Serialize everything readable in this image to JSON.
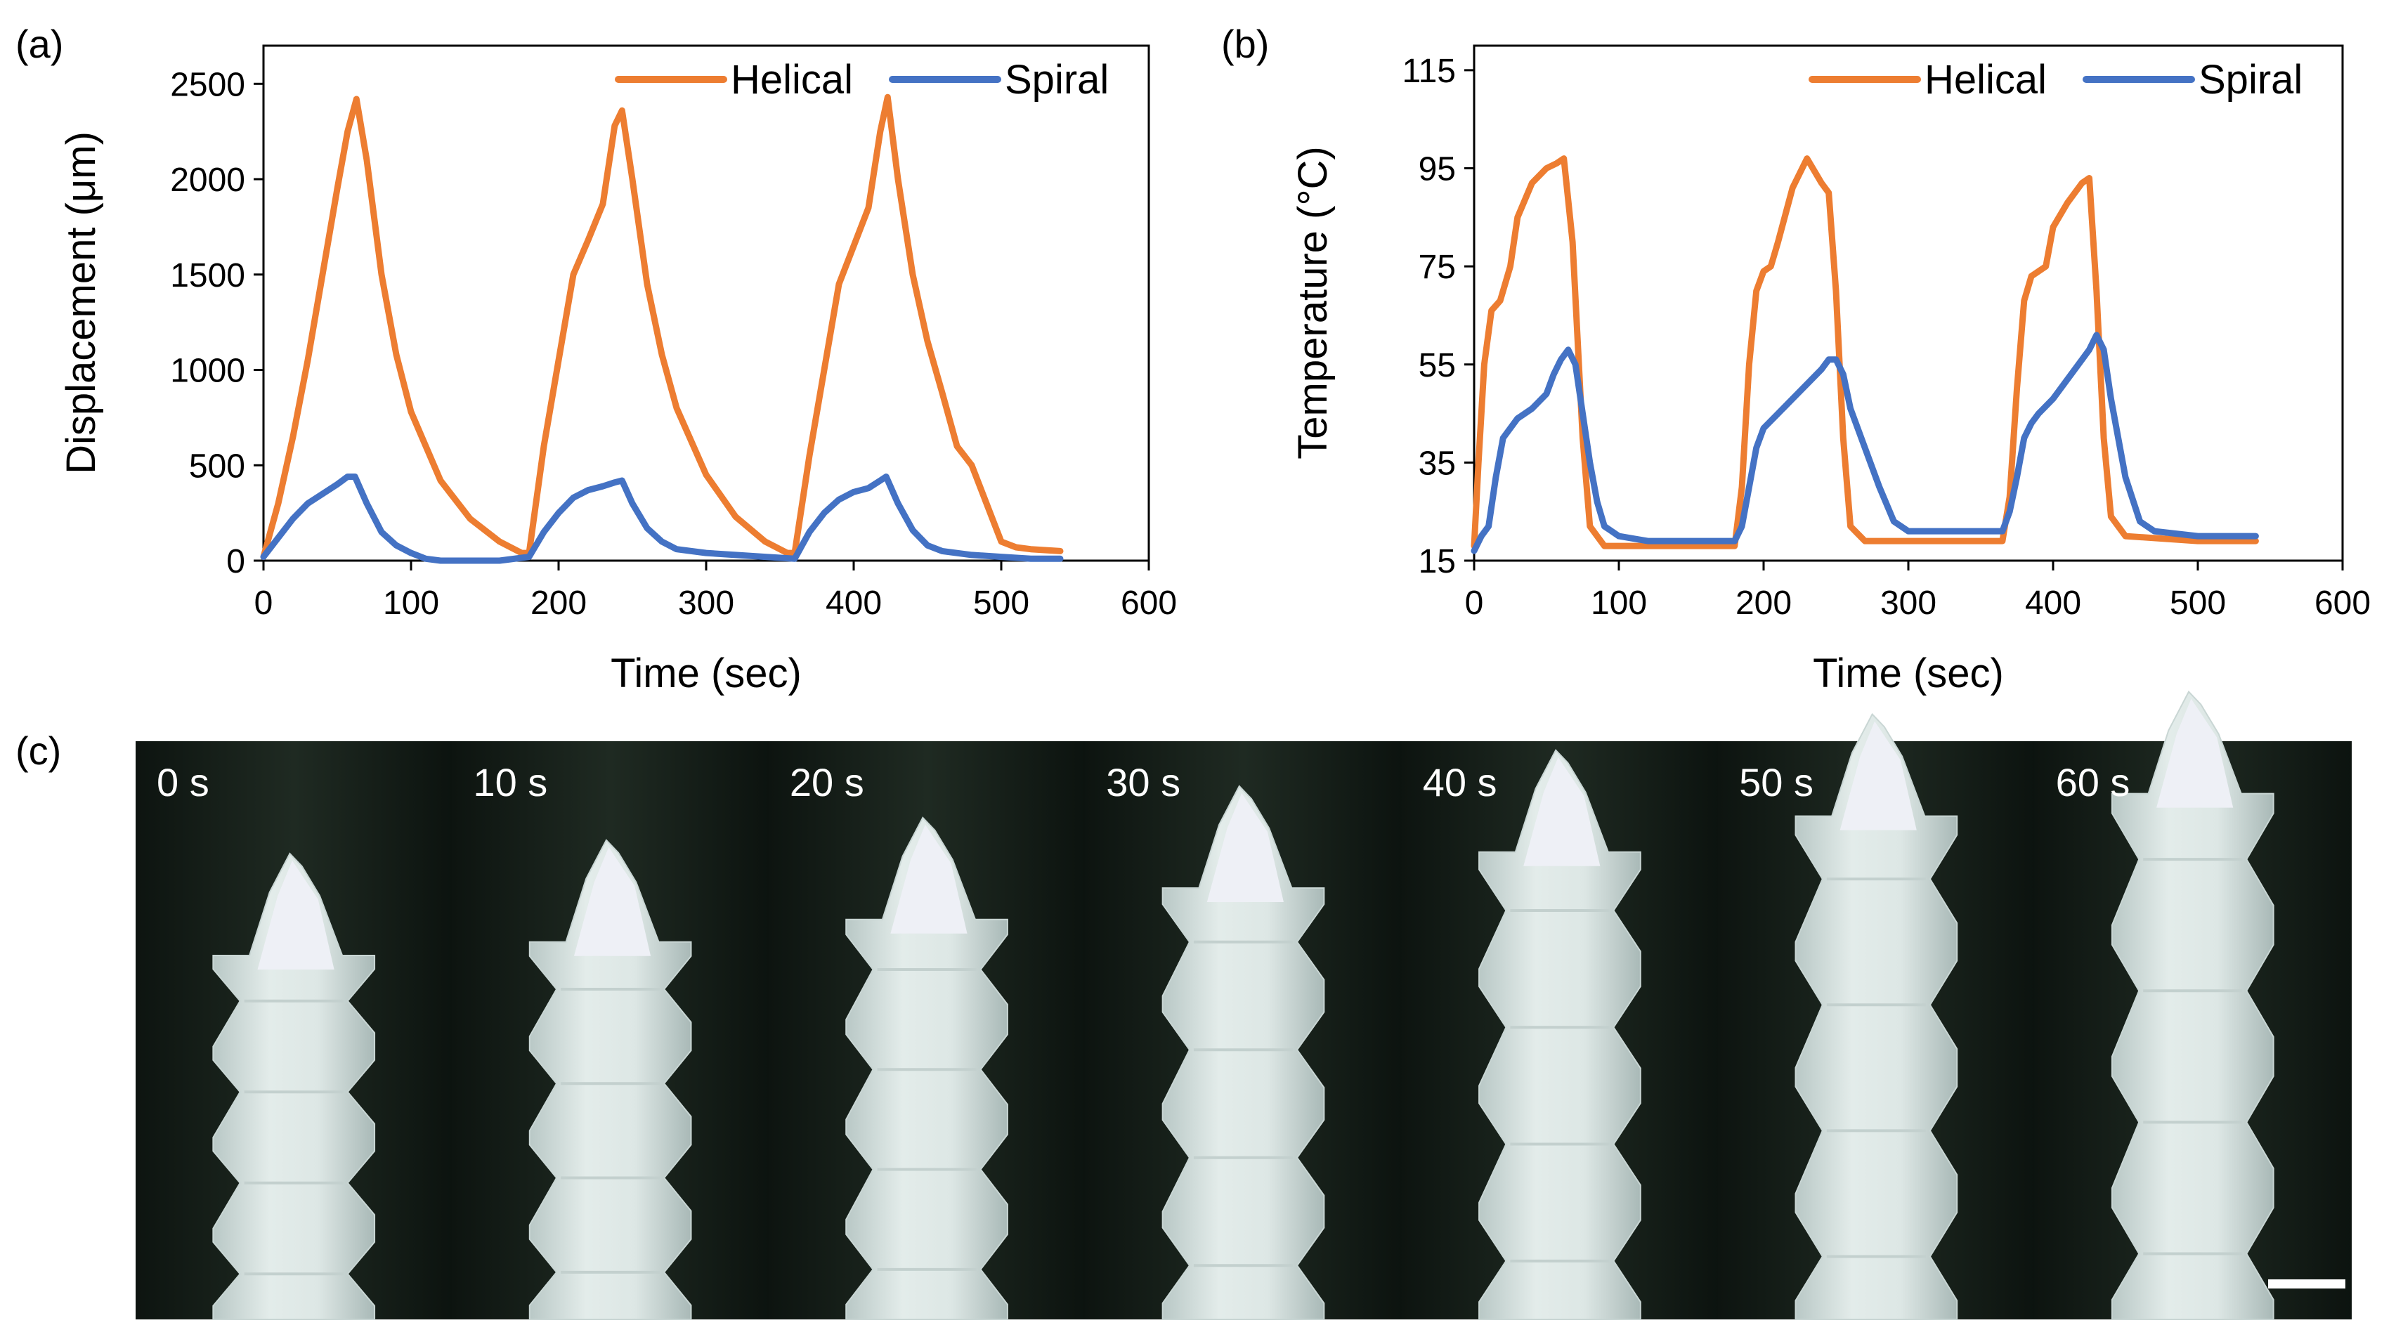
{
  "panels": {
    "a": "(a)",
    "b": "(b)",
    "c": "(c)"
  },
  "chart_data": [
    {
      "type": "line",
      "panel": "(a)",
      "xlabel": "Time (sec)",
      "ylabel": "Displacement (μm)",
      "xlim": [
        0,
        600
      ],
      "ylim": [
        0,
        2700
      ],
      "xticks": [
        0,
        100,
        200,
        300,
        400,
        500,
        600
      ],
      "yticks": [
        0,
        500,
        1000,
        1500,
        2000,
        2500
      ],
      "legend_position": "top-right",
      "series": [
        {
          "name": "Helical",
          "color": "#ED7D31",
          "x": [
            0,
            10,
            20,
            30,
            40,
            50,
            57,
            63,
            70,
            80,
            90,
            100,
            120,
            140,
            160,
            175,
            180,
            190,
            200,
            210,
            220,
            230,
            238,
            243,
            250,
            260,
            270,
            280,
            300,
            320,
            340,
            355,
            360,
            370,
            380,
            390,
            400,
            410,
            418,
            423,
            430,
            440,
            450,
            460,
            470,
            480,
            490,
            500,
            510,
            520,
            540
          ],
          "y": [
            20,
            300,
            650,
            1050,
            1500,
            1950,
            2250,
            2420,
            2100,
            1500,
            1080,
            780,
            420,
            220,
            100,
            40,
            40,
            600,
            1050,
            1500,
            1680,
            1870,
            2280,
            2360,
            2000,
            1450,
            1080,
            800,
            450,
            230,
            100,
            40,
            40,
            550,
            1000,
            1450,
            1650,
            1850,
            2250,
            2430,
            2000,
            1500,
            1150,
            880,
            600,
            500,
            300,
            100,
            70,
            60,
            50
          ]
        },
        {
          "name": "Spiral",
          "color": "#4472C4",
          "x": [
            0,
            10,
            20,
            30,
            40,
            50,
            57,
            62,
            70,
            80,
            90,
            100,
            110,
            120,
            140,
            160,
            180,
            190,
            200,
            210,
            220,
            230,
            238,
            243,
            250,
            260,
            270,
            280,
            300,
            320,
            340,
            360,
            370,
            380,
            390,
            400,
            410,
            418,
            422,
            430,
            440,
            450,
            460,
            480,
            500,
            520,
            540
          ],
          "y": [
            20,
            120,
            220,
            300,
            350,
            400,
            440,
            440,
            300,
            150,
            80,
            40,
            10,
            0,
            0,
            0,
            20,
            150,
            250,
            330,
            370,
            390,
            410,
            420,
            300,
            170,
            100,
            60,
            40,
            30,
            20,
            10,
            150,
            250,
            320,
            360,
            380,
            420,
            440,
            300,
            160,
            80,
            50,
            30,
            20,
            10,
            10
          ]
        }
      ]
    },
    {
      "type": "line",
      "panel": "(b)",
      "xlabel": "Time (sec)",
      "ylabel": "Temperature (°C)",
      "xlim": [
        0,
        600
      ],
      "ylim": [
        15,
        120
      ],
      "xticks": [
        0,
        100,
        200,
        300,
        400,
        500,
        600
      ],
      "yticks": [
        15,
        35,
        55,
        75,
        95,
        115
      ],
      "legend_position": "top-right",
      "series": [
        {
          "name": "Helical",
          "color": "#ED7D31",
          "x": [
            0,
            3,
            7,
            12,
            18,
            25,
            30,
            40,
            50,
            57,
            62,
            68,
            75,
            80,
            90,
            100,
            150,
            180,
            185,
            190,
            195,
            200,
            205,
            210,
            220,
            230,
            240,
            245,
            250,
            255,
            260,
            270,
            300,
            365,
            370,
            375,
            380,
            385,
            390,
            395,
            400,
            410,
            420,
            425,
            430,
            435,
            440,
            450,
            500,
            540
          ],
          "y": [
            18,
            35,
            55,
            66,
            68,
            75,
            85,
            92,
            95,
            96,
            97,
            80,
            40,
            22,
            18,
            18,
            18,
            18,
            30,
            55,
            70,
            74,
            75,
            80,
            91,
            97,
            92,
            90,
            70,
            40,
            22,
            19,
            19,
            19,
            28,
            50,
            68,
            73,
            74,
            75,
            83,
            88,
            92,
            93,
            70,
            40,
            24,
            20,
            19,
            19
          ]
        },
        {
          "name": "Spiral",
          "color": "#4472C4",
          "x": [
            0,
            5,
            10,
            15,
            20,
            30,
            40,
            50,
            55,
            60,
            65,
            70,
            75,
            80,
            85,
            90,
            100,
            120,
            150,
            180,
            185,
            190,
            195,
            200,
            210,
            220,
            230,
            240,
            245,
            250,
            255,
            260,
            270,
            280,
            290,
            300,
            320,
            340,
            365,
            370,
            375,
            380,
            385,
            390,
            400,
            410,
            420,
            425,
            430,
            435,
            440,
            450,
            460,
            470,
            500,
            540
          ],
          "y": [
            17,
            20,
            22,
            32,
            40,
            44,
            46,
            49,
            53,
            56,
            58,
            55,
            45,
            35,
            27,
            22,
            20,
            19,
            19,
            19,
            22,
            30,
            38,
            42,
            45,
            48,
            51,
            54,
            56,
            56,
            53,
            46,
            38,
            30,
            23,
            21,
            21,
            21,
            21,
            25,
            32,
            40,
            43,
            45,
            48,
            52,
            56,
            58,
            61,
            58,
            48,
            32,
            23,
            21,
            20,
            20
          ]
        }
      ]
    }
  ],
  "photo_strip": {
    "frames": [
      {
        "label": "0 s",
        "stretch": 0.0
      },
      {
        "label": "10 s",
        "stretch": 0.03
      },
      {
        "label": "20 s",
        "stretch": 0.08
      },
      {
        "label": "30 s",
        "stretch": 0.15
      },
      {
        "label": "40 s",
        "stretch": 0.23
      },
      {
        "label": "50 s",
        "stretch": 0.31
      },
      {
        "label": "60 s",
        "stretch": 0.36
      }
    ]
  }
}
